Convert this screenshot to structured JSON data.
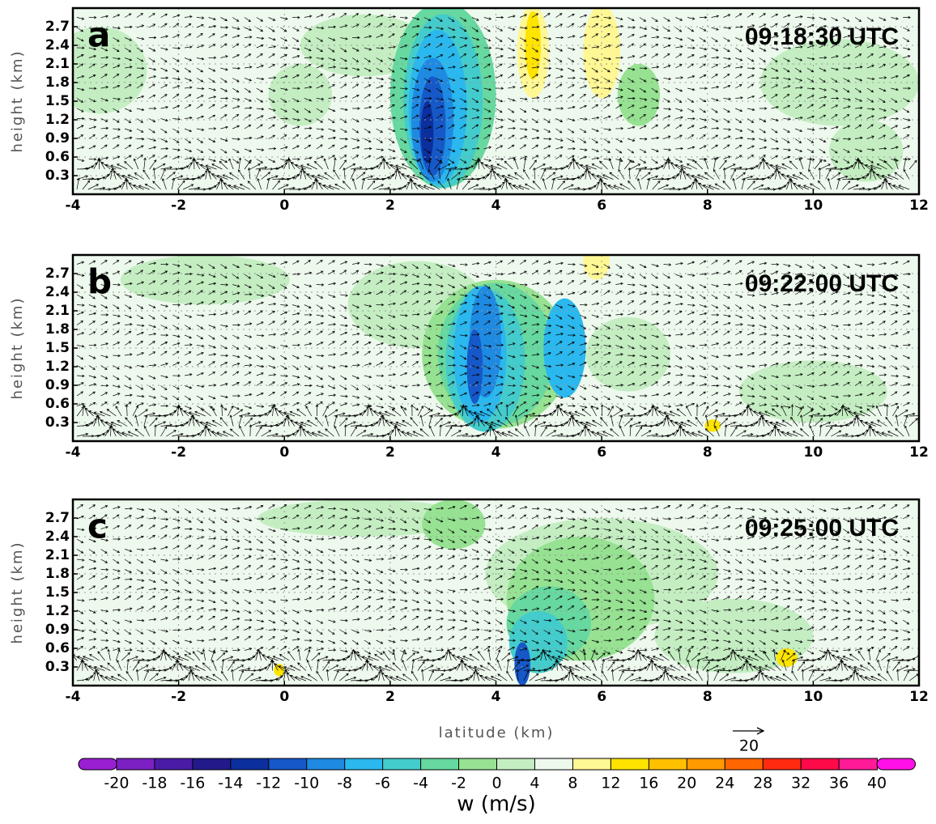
{
  "chart_data": [
    {
      "type": "contour",
      "panel_label": "a",
      "time_label": "09:18:30 UTC",
      "y_label": "height (km)",
      "xlim": [
        -4,
        12
      ],
      "xticks": [
        -4,
        -2,
        0,
        2,
        4,
        6,
        8,
        10,
        12
      ],
      "ylim": [
        0,
        3.0
      ],
      "yticks": [
        0.3,
        0.6,
        0.9,
        1.2,
        1.5,
        1.8,
        2.1,
        2.4,
        2.7
      ],
      "grid": true
    },
    {
      "type": "contour",
      "panel_label": "b",
      "time_label": "09:22:00 UTC",
      "y_label": "height (km)",
      "xlim": [
        -4,
        12
      ],
      "xticks": [
        -4,
        -2,
        0,
        2,
        4,
        6,
        8,
        10,
        12
      ],
      "ylim": [
        0,
        3.0
      ],
      "yticks": [
        0.3,
        0.6,
        0.9,
        1.2,
        1.5,
        1.8,
        2.1,
        2.4,
        2.7
      ],
      "grid": true
    },
    {
      "type": "contour",
      "panel_label": "c",
      "time_label": "09:25:00 UTC",
      "y_label": "height (km)",
      "xlim": [
        -4,
        12
      ],
      "xticks": [
        -4,
        -2,
        0,
        2,
        4,
        6,
        8,
        10,
        12
      ],
      "ylim": [
        0,
        3.0
      ],
      "yticks": [
        0.3,
        0.6,
        0.9,
        1.2,
        1.5,
        1.8,
        2.1,
        2.4,
        2.7
      ],
      "grid": true
    }
  ],
  "x_label": "latitude (km)",
  "reference_vector": 20,
  "colorbar": {
    "label": "w (m/s)",
    "ticks": [
      -20,
      -18,
      -16,
      -14,
      -12,
      -10,
      -8,
      -6,
      -4,
      -2,
      0,
      4,
      8,
      12,
      16,
      20,
      24,
      28,
      32,
      36,
      40
    ],
    "colors": [
      "#9a1ed2",
      "#7c20c4",
      "#4a1ca6",
      "#221a8a",
      "#0c2f9e",
      "#1658c8",
      "#1e8ae2",
      "#2ab8ee",
      "#44cccc",
      "#66d8a0",
      "#96e292",
      "#c4eec2",
      "#eef9ee",
      "#fff794",
      "#ffe400",
      "#ffc000",
      "#ff9a00",
      "#ff6600",
      "#ff2a10",
      "#ff0a48",
      "#ff1a98",
      "#ff10e6"
    ]
  }
}
